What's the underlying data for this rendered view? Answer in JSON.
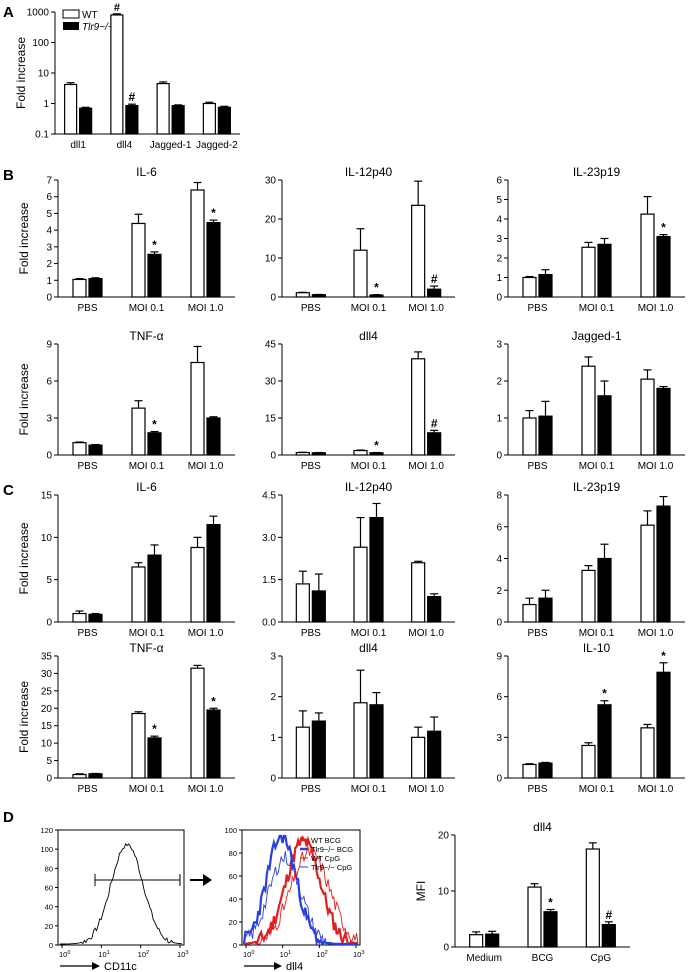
{
  "panels": {
    "A": "A",
    "B": "B",
    "C": "C",
    "D": "D"
  },
  "legend": {
    "wt": "WT",
    "ko": "Tlr9−/−"
  },
  "flow": {
    "hist1": {
      "xlabel": "CD11c",
      "yticks": [
        "0",
        "20",
        "40",
        "60",
        "80",
        "100",
        "120"
      ]
    },
    "hist2": {
      "xlabel": "dll4",
      "yticks": [
        "0",
        "20",
        "40",
        "60",
        "80",
        "100"
      ],
      "legend": [
        "WT BCG",
        "Tlr9−/− BCG",
        "WT CpG",
        "Tlr9−/− CpG"
      ],
      "colors": [
        "#e02020",
        "#2a3fe0",
        "#e02020",
        "#2a3fe0"
      ]
    }
  },
  "chart_data": [
    {
      "id": "A",
      "type": "bar",
      "title": "",
      "ylabel": "Fold increase",
      "yscale": "log",
      "ylim": [
        0.1,
        1000
      ],
      "yticks": [
        "0.1",
        "1",
        "10",
        "100",
        "1000"
      ],
      "categories": [
        "dll1",
        "dll4",
        "Jagged-1",
        "Jagged-2"
      ],
      "series": [
        {
          "name": "WT",
          "values": [
            4.2,
            800,
            4.5,
            1.0
          ],
          "err": [
            0.6,
            70,
            0.6,
            0.1
          ]
        },
        {
          "name": "Tlr9−/−",
          "values": [
            0.7,
            0.85,
            0.85,
            0.75
          ],
          "err": [
            0.05,
            0.1,
            0.05,
            0.06
          ]
        }
      ],
      "annotations": [
        "",
        "#",
        "",
        ""
      ]
    },
    {
      "id": "B1",
      "type": "bar",
      "title": "IL-6",
      "ylabel": "Fold increase",
      "ylim": [
        0,
        7
      ],
      "yticks": [
        "0",
        "1",
        "2",
        "3",
        "4",
        "5",
        "6",
        "7"
      ],
      "categories": [
        "PBS",
        "MOI 0.1",
        "MOI 1.0"
      ],
      "series": [
        {
          "name": "WT",
          "values": [
            1.05,
            4.4,
            6.4
          ],
          "err": [
            0.05,
            0.55,
            0.45
          ]
        },
        {
          "name": "Tlr9−/−",
          "values": [
            1.1,
            2.55,
            4.45
          ],
          "err": [
            0.05,
            0.15,
            0.15
          ]
        }
      ],
      "annotations": [
        "",
        "*",
        "*"
      ]
    },
    {
      "id": "B2",
      "type": "bar",
      "title": "IL-12p40",
      "ylabel": "",
      "ylim": [
        0,
        30
      ],
      "yticks": [
        "0",
        "10",
        "20",
        "30"
      ],
      "categories": [
        "PBS",
        "MOI 0.1",
        "MOI 1.0"
      ],
      "series": [
        {
          "name": "WT",
          "values": [
            1.1,
            12,
            23.5
          ],
          "err": [
            0.1,
            5.5,
            6.2
          ]
        },
        {
          "name": "Tlr9−/−",
          "values": [
            0.6,
            0.5,
            2.0
          ],
          "err": [
            0.05,
            0.1,
            0.8
          ]
        }
      ],
      "annotations": [
        "",
        "*",
        "#"
      ]
    },
    {
      "id": "B3",
      "type": "bar",
      "title": "IL-23p19",
      "ylabel": "",
      "ylim": [
        0,
        6
      ],
      "yticks": [
        "0",
        "1",
        "2",
        "3",
        "4",
        "5",
        "6"
      ],
      "categories": [
        "PBS",
        "MOI 0.1",
        "MOI 1.0"
      ],
      "series": [
        {
          "name": "WT",
          "values": [
            1.0,
            2.55,
            4.25
          ],
          "err": [
            0.05,
            0.25,
            0.9
          ]
        },
        {
          "name": "Tlr9−/−",
          "values": [
            1.15,
            2.7,
            3.1
          ],
          "err": [
            0.25,
            0.3,
            0.1
          ]
        }
      ],
      "annotations": [
        "",
        "",
        "*"
      ]
    },
    {
      "id": "B4",
      "type": "bar",
      "title": "TNF-α",
      "ylabel": "Fold increase",
      "ylim": [
        0,
        9
      ],
      "yticks": [
        "0",
        "3",
        "6",
        "9"
      ],
      "categories": [
        "PBS",
        "MOI 0.1",
        "MOI 1.0"
      ],
      "series": [
        {
          "name": "WT",
          "values": [
            1.0,
            3.8,
            7.5
          ],
          "err": [
            0.05,
            0.6,
            1.3
          ]
        },
        {
          "name": "Tlr9−/−",
          "values": [
            0.8,
            1.8,
            3.0
          ],
          "err": [
            0.05,
            0.1,
            0.1
          ]
        }
      ],
      "annotations": [
        "",
        "*",
        ""
      ]
    },
    {
      "id": "B5",
      "type": "bar",
      "title": "dll4",
      "ylabel": "",
      "ylim": [
        0,
        45
      ],
      "yticks": [
        "0",
        "15",
        "30",
        "45"
      ],
      "categories": [
        "PBS",
        "MOI 0.1",
        "MOI 1.0"
      ],
      "series": [
        {
          "name": "WT",
          "values": [
            1.0,
            1.8,
            39
          ],
          "err": [
            0.1,
            0.2,
            2.8
          ]
        },
        {
          "name": "Tlr9−/−",
          "values": [
            0.9,
            0.9,
            9.0
          ],
          "err": [
            0.1,
            0.1,
            1.0
          ]
        }
      ],
      "annotations": [
        "",
        "*",
        "#"
      ]
    },
    {
      "id": "B6",
      "type": "bar",
      "title": "Jagged-1",
      "ylabel": "",
      "ylim": [
        0,
        3
      ],
      "yticks": [
        "0",
        "1",
        "2",
        "3"
      ],
      "categories": [
        "PBS",
        "MOI 0.1",
        "MOI 1.0"
      ],
      "series": [
        {
          "name": "WT",
          "values": [
            1.0,
            2.4,
            2.05
          ],
          "err": [
            0.2,
            0.25,
            0.25
          ]
        },
        {
          "name": "Tlr9−/−",
          "values": [
            1.05,
            1.6,
            1.8
          ],
          "err": [
            0.4,
            0.4,
            0.05
          ]
        }
      ],
      "annotations": [
        "",
        "",
        ""
      ]
    },
    {
      "id": "C1",
      "type": "bar",
      "title": "IL-6",
      "ylabel": "Fold increase",
      "ylim": [
        0,
        15
      ],
      "yticks": [
        "0",
        "5",
        "10",
        "15"
      ],
      "categories": [
        "PBS",
        "MOI 0.1",
        "MOI 1.0"
      ],
      "series": [
        {
          "name": "WT",
          "values": [
            1.0,
            6.5,
            8.8
          ],
          "err": [
            0.3,
            0.5,
            1.2
          ]
        },
        {
          "name": "Tlr9−/−",
          "values": [
            0.9,
            7.9,
            11.5
          ],
          "err": [
            0.1,
            1.2,
            1.0
          ]
        }
      ],
      "annotations": [
        "",
        "",
        ""
      ]
    },
    {
      "id": "C2",
      "type": "bar",
      "title": "IL-12p40",
      "ylabel": "",
      "ylim": [
        0,
        4.5
      ],
      "yticks": [
        "0.0",
        "1.5",
        "3.0",
        "4.5"
      ],
      "categories": [
        "PBS",
        "MOI 0.1",
        "MOI 1.0"
      ],
      "series": [
        {
          "name": "WT",
          "values": [
            1.35,
            2.65,
            2.1
          ],
          "err": [
            0.45,
            1.05,
            0.05
          ]
        },
        {
          "name": "Tlr9−/−",
          "values": [
            1.1,
            3.7,
            0.9
          ],
          "err": [
            0.6,
            0.5,
            0.1
          ]
        }
      ],
      "annotations": [
        "",
        "",
        ""
      ]
    },
    {
      "id": "C3",
      "type": "bar",
      "title": "IL-23p19",
      "ylabel": "",
      "ylim": [
        0,
        8
      ],
      "yticks": [
        "0",
        "2",
        "4",
        "6",
        "8"
      ],
      "categories": [
        "PBS",
        "MOI 0.1",
        "MOI 1.0"
      ],
      "series": [
        {
          "name": "WT",
          "values": [
            1.1,
            3.25,
            6.1
          ],
          "err": [
            0.4,
            0.3,
            0.9
          ]
        },
        {
          "name": "Tlr9−/−",
          "values": [
            1.5,
            4.0,
            7.3
          ],
          "err": [
            0.5,
            0.9,
            0.6
          ]
        }
      ],
      "annotations": [
        "",
        "",
        ""
      ]
    },
    {
      "id": "C4",
      "type": "bar",
      "title": "TNF-α",
      "ylabel": "Fold increase",
      "ylim": [
        0,
        35
      ],
      "yticks": [
        "0",
        "5",
        "10",
        "15",
        "20",
        "25",
        "30",
        "35"
      ],
      "categories": [
        "PBS",
        "MOI 0.1",
        "MOI 1.0"
      ],
      "series": [
        {
          "name": "WT",
          "values": [
            1.0,
            18.5,
            31.5
          ],
          "err": [
            0.2,
            0.5,
            0.8
          ]
        },
        {
          "name": "Tlr9−/−",
          "values": [
            1.2,
            11.5,
            19.5
          ],
          "err": [
            0.1,
            0.5,
            0.5
          ]
        }
      ],
      "annotations": [
        "",
        "*",
        "*"
      ]
    },
    {
      "id": "C5",
      "type": "bar",
      "title": "dll4",
      "ylabel": "",
      "ylim": [
        0,
        3
      ],
      "yticks": [
        "0",
        "1",
        "2",
        "3"
      ],
      "categories": [
        "PBS",
        "MOI 0.1",
        "MOI 1.0"
      ],
      "series": [
        {
          "name": "WT",
          "values": [
            1.25,
            1.85,
            1.0
          ],
          "err": [
            0.4,
            0.8,
            0.25
          ]
        },
        {
          "name": "Tlr9−/−",
          "values": [
            1.4,
            1.8,
            1.15
          ],
          "err": [
            0.2,
            0.3,
            0.35
          ]
        }
      ],
      "annotations": [
        "",
        "",
        ""
      ]
    },
    {
      "id": "C6",
      "type": "bar",
      "title": "IL-10",
      "ylabel": "",
      "ylim": [
        0,
        9
      ],
      "yticks": [
        "0",
        "3",
        "6",
        "9"
      ],
      "categories": [
        "PBS",
        "MOI 0.1",
        "MOI 1.0"
      ],
      "series": [
        {
          "name": "WT",
          "values": [
            1.0,
            2.4,
            3.7
          ],
          "err": [
            0.05,
            0.2,
            0.25
          ]
        },
        {
          "name": "Tlr9−/−",
          "values": [
            1.1,
            5.4,
            7.8
          ],
          "err": [
            0.05,
            0.3,
            0.7
          ]
        }
      ],
      "annotations": [
        "",
        "*",
        "*"
      ]
    },
    {
      "id": "D",
      "type": "bar",
      "title": "dll4",
      "ylabel": "MFI",
      "ylim": [
        0,
        20
      ],
      "yticks": [
        "0",
        "10",
        "20"
      ],
      "categories": [
        "Medium",
        "BCG",
        "CpG"
      ],
      "series": [
        {
          "name": "WT",
          "values": [
            2.2,
            10.7,
            17.5
          ],
          "err": [
            0.5,
            0.6,
            1.1
          ]
        },
        {
          "name": "Tlr9−/−",
          "values": [
            2.3,
            6.3,
            4.0
          ],
          "err": [
            0.5,
            0.4,
            0.5
          ]
        }
      ],
      "annotations": [
        "",
        "*",
        "#"
      ]
    }
  ]
}
